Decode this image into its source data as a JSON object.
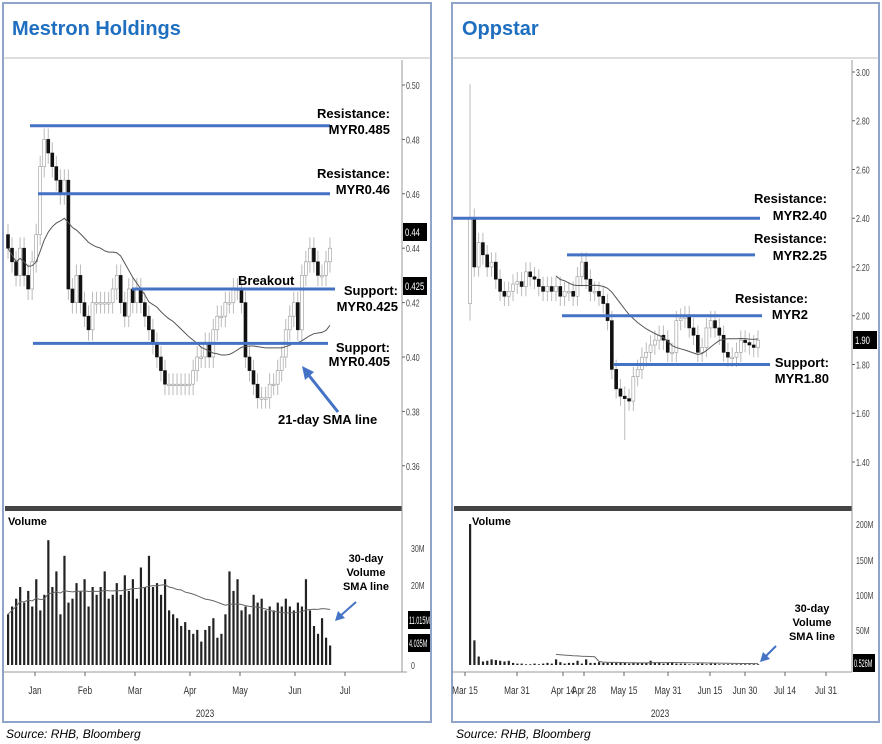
{
  "source_left": "Source: RHB, Bloomberg",
  "source_right": "Source: RHB, Bloomberg",
  "colors": {
    "title": "#1f6fc0",
    "levels": "#4472c4",
    "frame": "#8fa4c8",
    "sma": "#555555"
  },
  "chart_data": [
    {
      "type": "candlestick",
      "title": "Mestron Holdings",
      "currency": "MYR",
      "x_ticks": [
        "Jan",
        "Feb",
        "Mar",
        "Apr",
        "May",
        "Jun",
        "Jul"
      ],
      "year": "2023",
      "y_ticks": [
        "0.50",
        "0.48",
        "0.46",
        "0.44",
        "0.42",
        "0.40",
        "0.38",
        "0.36"
      ],
      "ylim": [
        0.35,
        0.51
      ],
      "last_price_labels": [
        "0.44",
        "0.425"
      ],
      "close": [
        0.44,
        0.435,
        0.43,
        0.44,
        0.43,
        0.425,
        0.435,
        0.445,
        0.47,
        0.48,
        0.475,
        0.47,
        0.465,
        0.46,
        0.465,
        0.425,
        0.42,
        0.43,
        0.42,
        0.415,
        0.41,
        0.42,
        0.42,
        0.42,
        0.42,
        0.42,
        0.425,
        0.43,
        0.42,
        0.415,
        0.425,
        0.42,
        0.425,
        0.42,
        0.415,
        0.41,
        0.405,
        0.4,
        0.395,
        0.39,
        0.39,
        0.39,
        0.39,
        0.39,
        0.39,
        0.39,
        0.395,
        0.4,
        0.4,
        0.405,
        0.4,
        0.41,
        0.415,
        0.415,
        0.42,
        0.42,
        0.425,
        0.425,
        0.42,
        0.4,
        0.395,
        0.39,
        0.385,
        0.385,
        0.385,
        0.39,
        0.39,
        0.395,
        0.4,
        0.41,
        0.415,
        0.42,
        0.41,
        0.43,
        0.435,
        0.44,
        0.435,
        0.43,
        0.43,
        0.435,
        0.44
      ],
      "sma_label": "21-day SMA line",
      "levels": [
        {
          "kind": "Resistance:",
          "label": "MYR0.485",
          "value": 0.485
        },
        {
          "kind": "Resistance:",
          "label": "MYR0.46",
          "value": 0.46
        },
        {
          "kind": "Support:",
          "label": "MYR0.425",
          "value": 0.425
        },
        {
          "kind": "Support:",
          "label": "MYR0.405",
          "value": 0.405
        }
      ],
      "breakout_label": "Breakout",
      "volume": {
        "label": "Volume",
        "unit": "M",
        "y_ticks": [
          "30M",
          "20M",
          "0"
        ],
        "last_labels": [
          "11.015M",
          "4.035M"
        ],
        "sma_label": [
          "30-day",
          "Volume",
          "SMA line"
        ],
        "values": [
          13,
          15,
          17,
          20,
          16,
          19,
          15,
          22,
          14,
          18,
          32,
          20,
          24,
          13,
          28,
          16,
          17,
          21,
          19,
          22,
          15,
          20,
          18,
          20,
          24,
          17,
          18,
          21,
          18,
          23,
          19,
          22,
          17,
          25,
          20,
          28,
          20,
          21,
          18,
          22,
          14,
          13,
          12,
          10,
          11,
          9,
          8,
          9,
          6,
          9,
          10,
          12,
          7,
          8,
          13,
          24,
          19,
          22,
          14,
          15,
          13,
          18,
          16,
          17,
          14,
          15,
          14,
          16,
          15,
          17,
          15,
          14,
          16,
          15,
          22,
          14,
          10,
          8,
          12,
          7,
          5
        ]
      }
    },
    {
      "type": "candlestick",
      "title": "Oppstar",
      "currency": "MYR",
      "x_ticks": [
        "Mar 15",
        "Mar 31",
        "Apr 14",
        "Apr 28",
        "May 15",
        "May 31",
        "Jun 15",
        "Jun 30",
        "Jul 14",
        "Jul 31"
      ],
      "year": "2023",
      "y_ticks": [
        "3.00",
        "2.80",
        "2.60",
        "2.40",
        "2.20",
        "2.00",
        "1.80",
        "1.60",
        "1.40"
      ],
      "ylim": [
        1.3,
        3.02
      ],
      "last_price_labels": [
        "1.90"
      ],
      "close": [
        2.4,
        2.2,
        2.3,
        2.25,
        2.2,
        2.22,
        2.15,
        2.1,
        2.08,
        2.1,
        2.13,
        2.14,
        2.12,
        2.18,
        2.16,
        2.15,
        2.12,
        2.1,
        2.12,
        2.1,
        2.12,
        2.08,
        2.1,
        2.1,
        2.08,
        2.16,
        2.22,
        2.15,
        2.1,
        2.1,
        2.08,
        2.05,
        1.98,
        1.78,
        1.7,
        1.67,
        1.66,
        1.65,
        1.75,
        1.78,
        1.83,
        1.85,
        1.88,
        1.9,
        1.92,
        1.9,
        1.85,
        1.85,
        1.98,
        1.99,
        2.0,
        1.95,
        1.92,
        1.85,
        1.87,
        1.95,
        1.98,
        1.95,
        1.92,
        1.85,
        1.83,
        1.83,
        1.85,
        1.9,
        1.89,
        1.88,
        1.87,
        1.9
      ],
      "extremes": [
        {
          "index": 0,
          "open": 2.05,
          "high": 2.95,
          "low": 1.98
        },
        {
          "index": 36,
          "low": 1.49
        }
      ],
      "levels": [
        {
          "kind": "Resistance:",
          "label": "MYR2.40",
          "value": 2.4
        },
        {
          "kind": "Resistance:",
          "label": "MYR2.25",
          "value": 2.25
        },
        {
          "kind": "Resistance:",
          "label": "MYR2",
          "value": 2.0
        },
        {
          "kind": "Support:",
          "label": "MYR1.80",
          "value": 1.8
        }
      ],
      "volume": {
        "label": "Volume",
        "unit": "M",
        "y_ticks": [
          "200M",
          "150M",
          "100M",
          "50M"
        ],
        "last_labels": [
          "0.526M"
        ],
        "sma_label": [
          "30-day",
          "Volume",
          "SMA line"
        ],
        "values": [
          200,
          35,
          12,
          5,
          6,
          8,
          7,
          6,
          5,
          6,
          3,
          2,
          2,
          1,
          1,
          2,
          1,
          2,
          3,
          2,
          8,
          4,
          2,
          3,
          3,
          6,
          2,
          8,
          3,
          3,
          4,
          3,
          3,
          4,
          3,
          3,
          3,
          2,
          3,
          3,
          3,
          3,
          6,
          3,
          3,
          2,
          3,
          3,
          2,
          2,
          2,
          1,
          1,
          2,
          2,
          1,
          2,
          2,
          1,
          1,
          1,
          1,
          1,
          1,
          1,
          1,
          1,
          1
        ]
      }
    }
  ]
}
